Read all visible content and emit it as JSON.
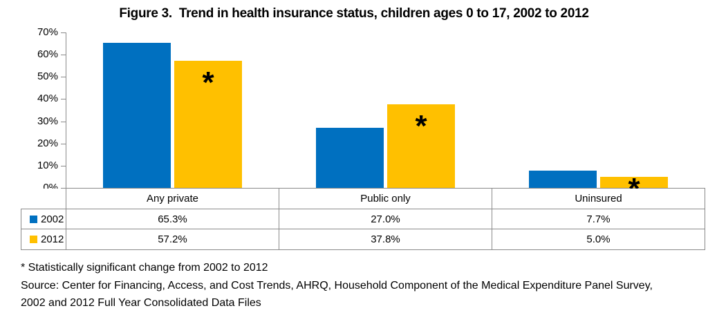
{
  "title": "Figure 3.  Trend in health insurance status, children ages 0 to 17, 2002 to 2012",
  "chart_data": {
    "type": "bar",
    "title": "Figure 3.  Trend in health insurance status, children ages 0 to 17, 2002 to 2012",
    "categories": [
      "Any private",
      "Public only",
      "Uninsured"
    ],
    "series": [
      {
        "name": "2002",
        "color": "#0070C0",
        "values": [
          65.3,
          27.0,
          7.7
        ],
        "significant": [
          false,
          false,
          false
        ]
      },
      {
        "name": "2012",
        "color": "#FFC000",
        "values": [
          57.2,
          37.8,
          5.0
        ],
        "significant": [
          true,
          true,
          true
        ]
      }
    ],
    "xlabel": "",
    "ylabel": "",
    "ylim": [
      0,
      70
    ],
    "ytick_step": 10,
    "ytick_suffix": "%",
    "grid": false,
    "legend_position": "data-table-left",
    "sig_marker": "*"
  },
  "table": {
    "header": [
      "Any private",
      "Public only",
      "Uninsured"
    ],
    "rows": [
      {
        "label": "2002",
        "swatch": "#0070C0",
        "values": [
          "65.3%",
          "27.0%",
          "7.7%"
        ]
      },
      {
        "label": "2012",
        "swatch": "#FFC000",
        "values": [
          "57.2%",
          "37.8%",
          "5.0%"
        ]
      }
    ]
  },
  "footnotes": {
    "line1": "* Statistically significant change from 2002 to 2012",
    "line2": "Source: Center for Financing, Access, and Cost Trends, AHRQ, Household Component of the Medical Expenditure Panel Survey,",
    "line3": "2002 and 2012 Full Year Consolidated Data Files"
  },
  "colors": {
    "axis": "#898989",
    "table_border": "#898989",
    "series_2002": "#0070C0",
    "series_2012": "#FFC000",
    "text": "#000000"
  }
}
